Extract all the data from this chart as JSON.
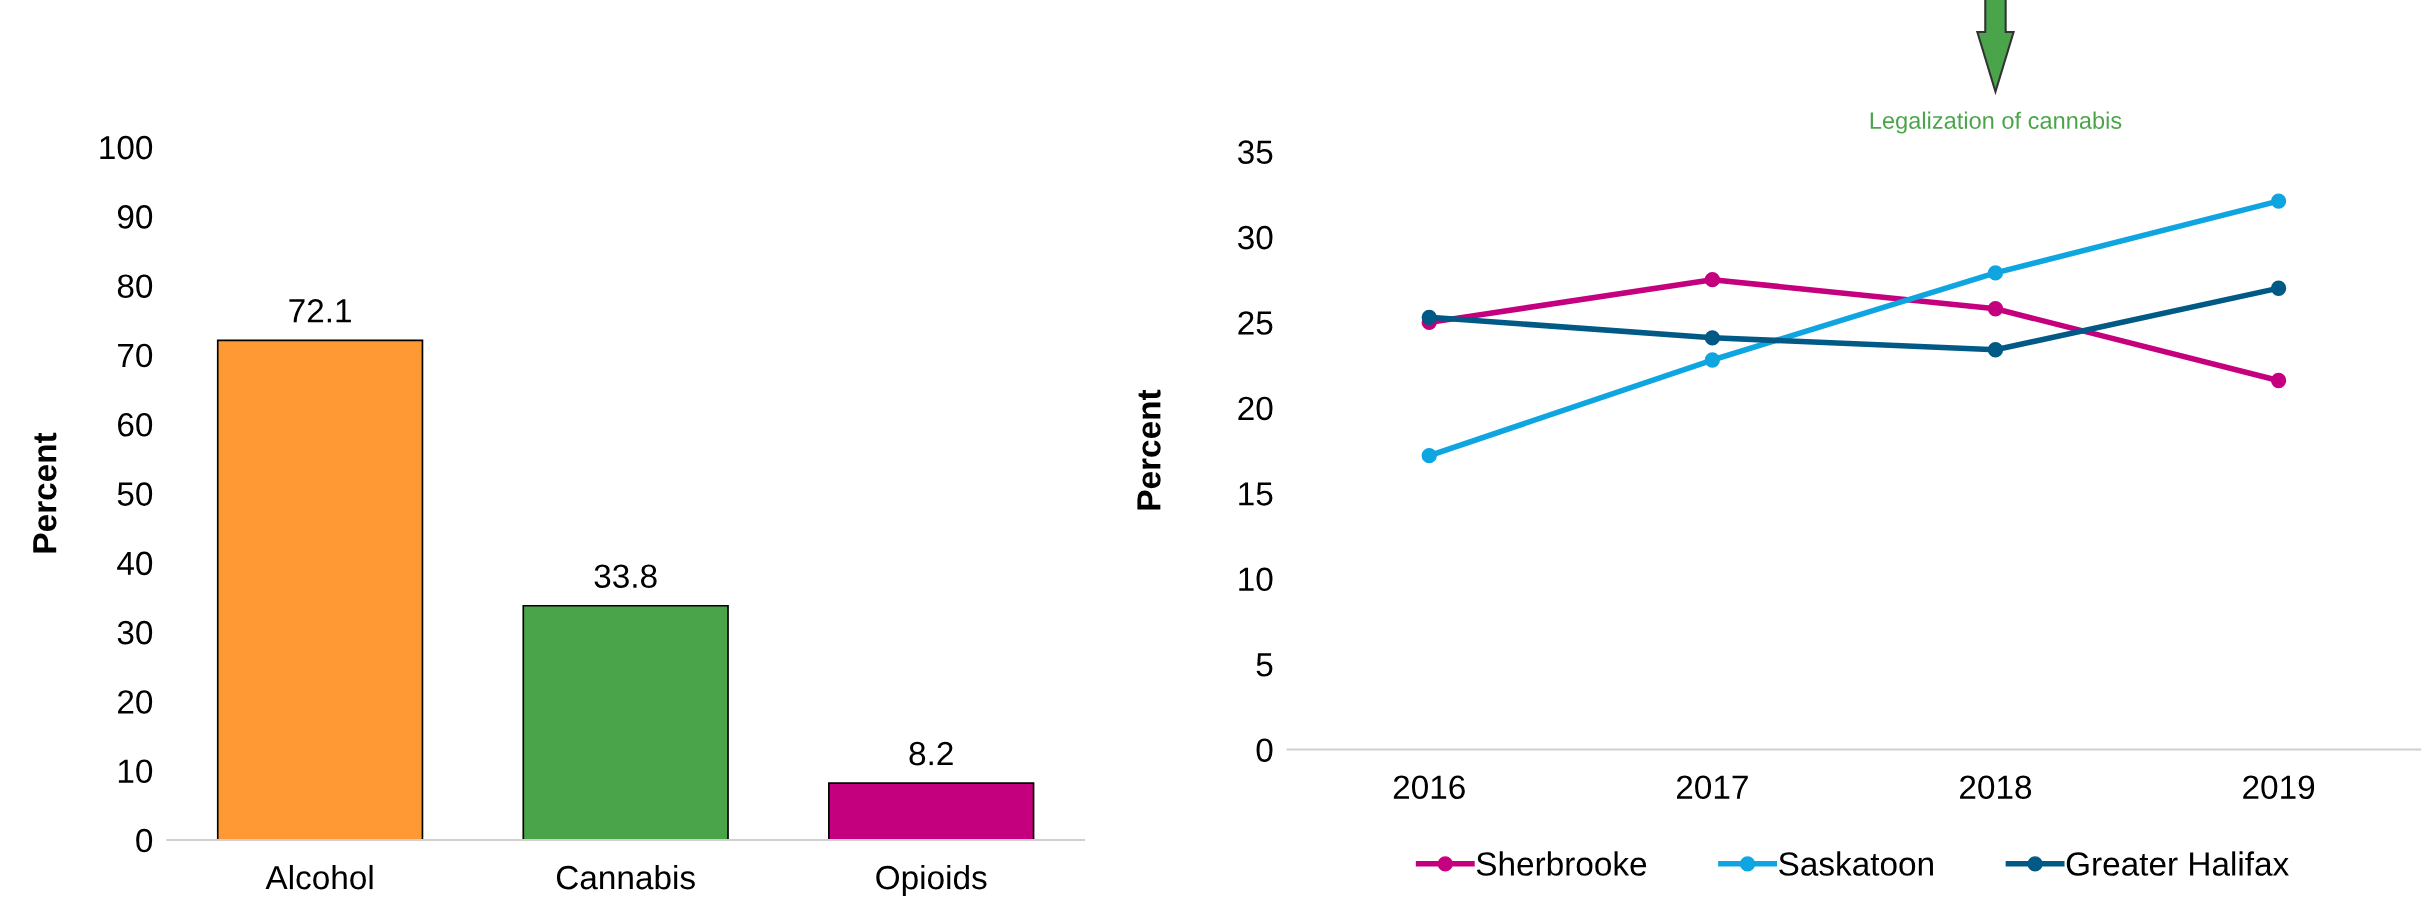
{
  "chart_data": [
    {
      "type": "bar",
      "ylabel": "Percent",
      "categories": [
        "Alcohol",
        "Cannabis",
        "Opioids"
      ],
      "values": [
        72.1,
        33.8,
        8.2
      ],
      "colors": [
        "#ff9933",
        "#4aa54a",
        "#c4007f"
      ],
      "ylim": [
        0,
        100
      ],
      "yticks": [
        0,
        10,
        20,
        30,
        40,
        50,
        60,
        70,
        80,
        90,
        100
      ],
      "data_labels": true,
      "grid": false
    },
    {
      "type": "line",
      "ylabel": "Percent",
      "categories": [
        "2016",
        "2017",
        "2018",
        "2019"
      ],
      "series": [
        {
          "name": "Sherbrooke",
          "color": "#c4007f",
          "values": [
            25.0,
            27.5,
            25.8,
            21.6
          ]
        },
        {
          "name": "Saskatoon",
          "color": "#0ea5e0",
          "values": [
            17.2,
            22.8,
            27.9,
            32.1
          ]
        },
        {
          "name": "Greater Halifax",
          "color": "#005a85",
          "values": [
            25.3,
            24.1,
            23.4,
            27.0
          ]
        }
      ],
      "ylim": [
        0,
        35
      ],
      "yticks": [
        0,
        5,
        10,
        15,
        20,
        25,
        30,
        35
      ],
      "marker": "circle",
      "line_style": "solid",
      "grid": false,
      "legend": "bottom",
      "annotations": [
        "Legalization of cannabis"
      ]
    }
  ]
}
